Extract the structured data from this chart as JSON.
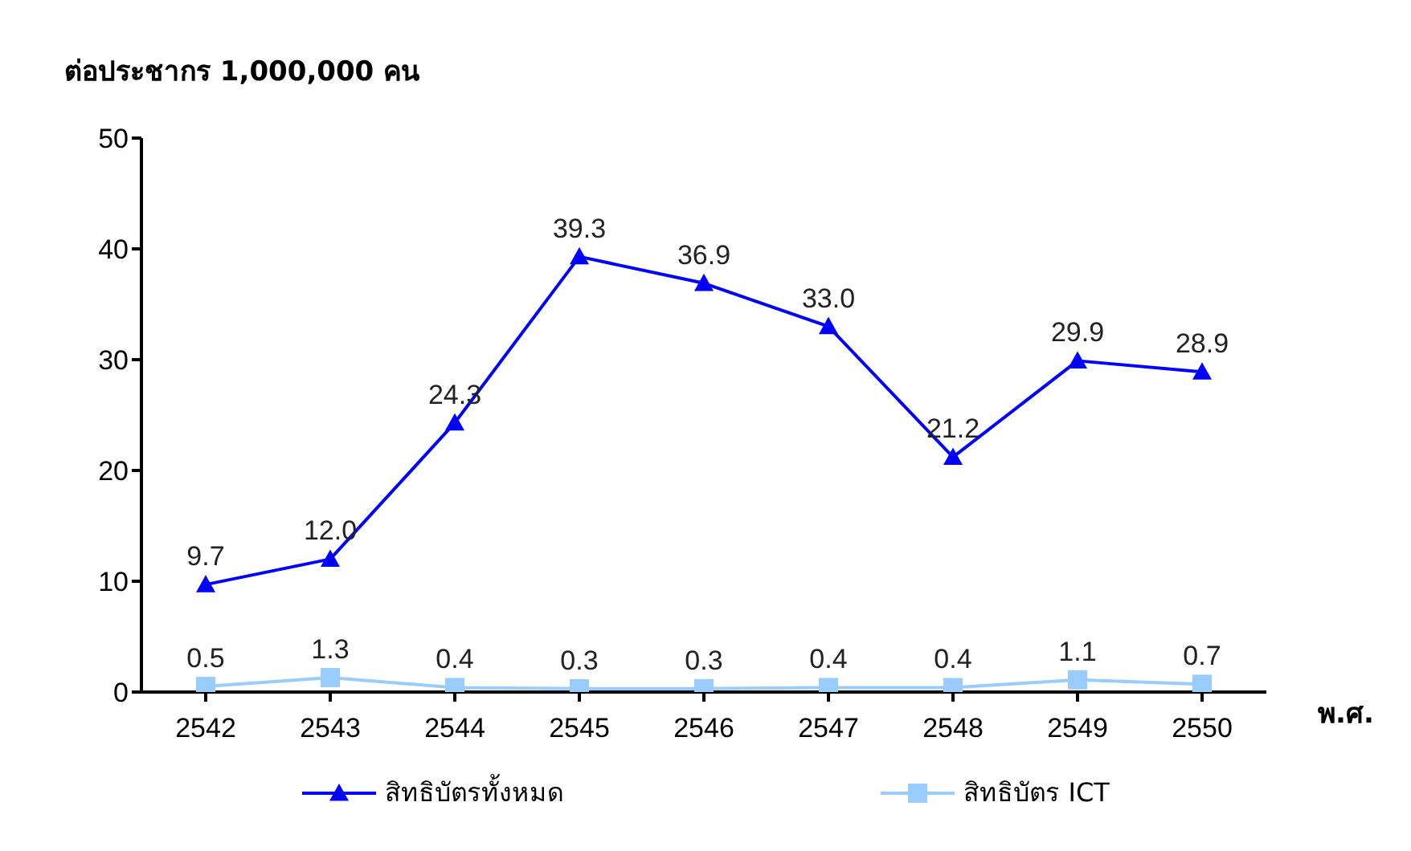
{
  "chart_data": {
    "type": "line",
    "ylabel": "ต่อประชากร 1,000,000 คน",
    "xlabel": "พ.ศ.",
    "categories": [
      "2542",
      "2543",
      "2544",
      "2545",
      "2546",
      "2547",
      "2548",
      "2549",
      "2550"
    ],
    "series": [
      {
        "name": "สิทธิบัตรทั้งหมด",
        "color": "#0000ff",
        "marker": "triangle",
        "values": [
          9.7,
          12.0,
          24.3,
          39.3,
          36.9,
          33.0,
          21.2,
          29.9,
          28.9
        ],
        "value_labels": [
          "9.7",
          "12.0",
          "24.3",
          "39.3",
          "36.9",
          "33.0",
          "21.2",
          "29.9",
          "28.9"
        ]
      },
      {
        "name": "สิทธิบัตร ICT",
        "color": "#99ccff",
        "marker": "square",
        "values": [
          0.5,
          1.3,
          0.4,
          0.3,
          0.3,
          0.4,
          0.4,
          1.1,
          0.7
        ],
        "value_labels": [
          "0.5",
          "1.3",
          "0.4",
          "0.3",
          "0.3",
          "0.4",
          "0.4",
          "1.1",
          "0.7"
        ]
      }
    ],
    "ylim": [
      0,
      50
    ],
    "yticks": [
      0,
      10,
      20,
      30,
      40,
      50
    ],
    "grid": false,
    "legend": "bottom",
    "line_style": "solid"
  }
}
